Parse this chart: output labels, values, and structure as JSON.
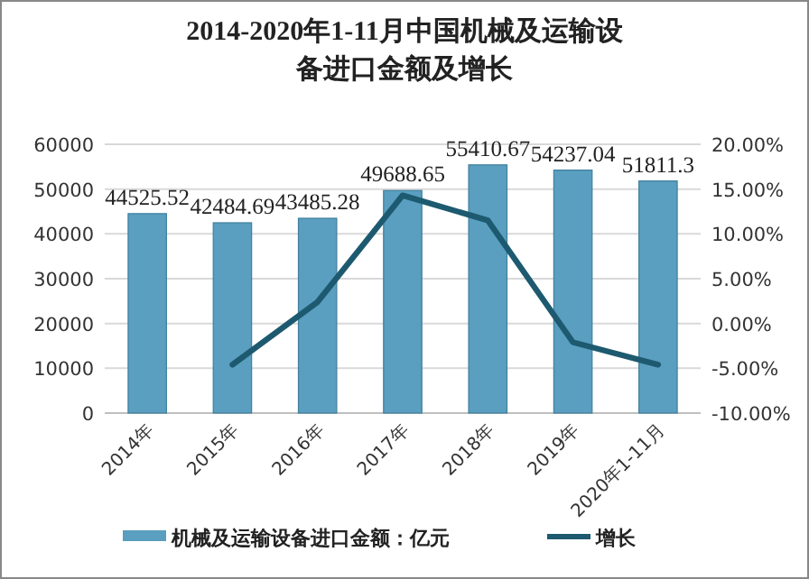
{
  "chart_data": {
    "type": "bar",
    "title": "2014-2020年1-11月中国机械及运输设备进口金额及增长",
    "categories": [
      "2014年",
      "2015年",
      "2016年",
      "2017年",
      "2018年",
      "2019年",
      "2020年1-11月"
    ],
    "series": [
      {
        "name": "机械及运输设备进口金额：亿元",
        "color": "#5a9ec0",
        "values": [
          44525.52,
          42484.69,
          43485.28,
          49688.65,
          55410.67,
          54237.04,
          51811.3
        ],
        "data_labels": true
      },
      {
        "name": "增长",
        "type": "line",
        "axis": "y2",
        "color": "#1d5a70",
        "values": [
          null,
          -4.6,
          2.4,
          14.3,
          11.5,
          -2.1,
          -4.6
        ]
      }
    ],
    "ylim": [
      0,
      60000
    ],
    "yticks": [
      0,
      10000,
      20000,
      30000,
      40000,
      50000,
      60000
    ],
    "y2lim": [
      -10,
      20
    ],
    "y2ticks": [
      {
        "value": -10,
        "label": "-10.00%"
      },
      {
        "value": -5,
        "label": "-5.00%"
      },
      {
        "value": 0,
        "label": "0.00%"
      },
      {
        "value": 5,
        "label": "5.00%"
      },
      {
        "value": 10,
        "label": "10.00%"
      },
      {
        "value": 15,
        "label": "15.00%"
      },
      {
        "value": 20,
        "label": "20.00%"
      }
    ],
    "grid": "y",
    "legend": "bottom",
    "marker": "none",
    "line_style": "solid"
  }
}
